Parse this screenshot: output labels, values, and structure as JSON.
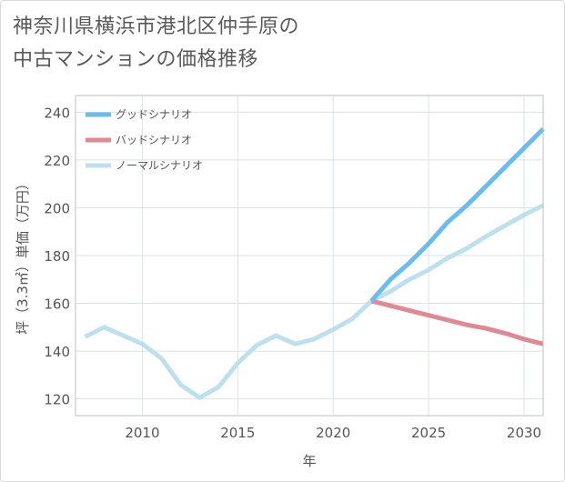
{
  "title": {
    "line1": "神奈川県横浜市港北区仲手原の",
    "line2": "中古マンションの価格推移"
  },
  "colors": {
    "good": "#6bbcec",
    "bad": "#dc8a93",
    "normal": "#bee0ee",
    "grid": "#d7e3ec",
    "plot_border": "#bfbfbf"
  },
  "chart_data": {
    "type": "line",
    "xlabel": "年",
    "ylabel": "坪（3.3㎡）単価（万円）",
    "xlim": [
      2006.5,
      2031
    ],
    "ylim": [
      113,
      247
    ],
    "xticks": [
      2010,
      2015,
      2020,
      2025,
      2030
    ],
    "yticks": [
      120,
      140,
      160,
      180,
      200,
      220,
      240
    ],
    "grid": true,
    "legend_position": "top-left",
    "series": [
      {
        "name": "グッドシナリオ",
        "color_key": "good",
        "x": [
          2022,
          2023,
          2024,
          2025,
          2026,
          2027,
          2028,
          2029,
          2030,
          2031
        ],
        "y": [
          161,
          170,
          177,
          185,
          194,
          201,
          209,
          217,
          225,
          233
        ]
      },
      {
        "name": "バッドシナリオ",
        "color_key": "bad",
        "x": [
          2022,
          2023,
          2024,
          2025,
          2026,
          2027,
          2028,
          2029,
          2030,
          2031
        ],
        "y": [
          161,
          159,
          157,
          155,
          153,
          151,
          149.5,
          147.5,
          145,
          143
        ]
      },
      {
        "name": "ノーマルシナリオ",
        "color_key": "normal",
        "x": [
          2007,
          2008,
          2009,
          2010,
          2011,
          2012,
          2013,
          2014,
          2015,
          2016,
          2017,
          2018,
          2019,
          2020,
          2021,
          2022,
          2023,
          2024,
          2025,
          2026,
          2027,
          2028,
          2029,
          2030,
          2031
        ],
        "y": [
          146,
          150,
          146.5,
          143,
          137,
          126,
          120.5,
          125,
          135,
          142.5,
          146.5,
          143,
          145,
          149,
          153.5,
          161,
          165,
          170,
          174,
          179,
          183,
          188,
          192.5,
          197,
          201
        ]
      }
    ]
  }
}
